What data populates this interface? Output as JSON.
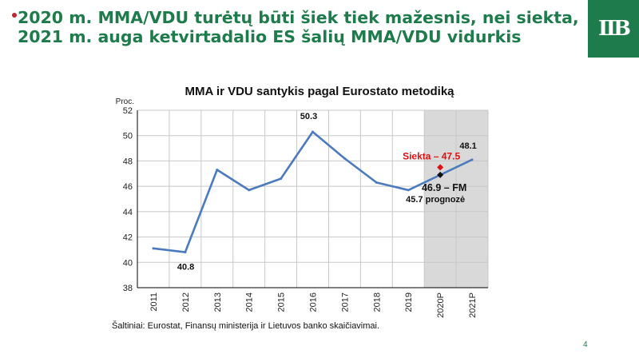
{
  "slide": {
    "title": "2020 m. MMA/VDU turėtų būti šiek tiek mažesnis, nei siekta, 2021 m. auga ketvirtadalio ES šalių MMA/VDU vidurkis",
    "source": "Šaltiniai: Eurostat, Finansų ministerija ir Lietuvos banko skaičiavimai.",
    "page_number": "4",
    "colors": {
      "brand_green": "#1e7b4b",
      "line": "#4b7bbe",
      "target": "#e01010",
      "forecast_band": "#d9d9d9"
    }
  },
  "chart_data": {
    "type": "line",
    "title": "MMA ir VDU santykis pagal Eurostato metodiką",
    "ylabel": "Proc.",
    "ylim": [
      38,
      52
    ],
    "yticks": [
      38,
      40,
      42,
      44,
      46,
      48,
      50,
      52
    ],
    "categories": [
      "2011",
      "2012",
      "2013",
      "2014",
      "2015",
      "2016",
      "2017",
      "2018",
      "2019",
      "2020P",
      "2021P"
    ],
    "forecast_categories": [
      "2020P",
      "2021P"
    ],
    "grid": true,
    "series": [
      {
        "values": [
          41.1,
          40.8,
          47.3,
          45.7,
          46.6,
          50.3,
          48.2,
          46.3,
          45.7,
          46.9,
          48.1
        ]
      }
    ],
    "markers": [
      {
        "category": "2020P",
        "value": 47.5,
        "color": "#e01010"
      },
      {
        "category": "2020P",
        "value": 46.9,
        "color": "#111111"
      }
    ],
    "annotations": [
      {
        "text": "40.8",
        "category": "2012",
        "value": 40.8,
        "color": "#111111"
      },
      {
        "text": "50.3",
        "category": "2016",
        "value": 50.3,
        "color": "#111111"
      },
      {
        "text": "48.1",
        "category": "2021P",
        "value": 48.1,
        "color": "#111111"
      },
      {
        "text": "Siekta – 47.5",
        "category": "2020P",
        "value": 47.5,
        "color": "#e01010"
      },
      {
        "text": "46.9 – FM",
        "category": "2020P",
        "value": 46.9,
        "color": "#111111"
      },
      {
        "text": "45.7 prognozė",
        "category": "2020P",
        "value": 46.9,
        "color": "#111111"
      }
    ]
  }
}
